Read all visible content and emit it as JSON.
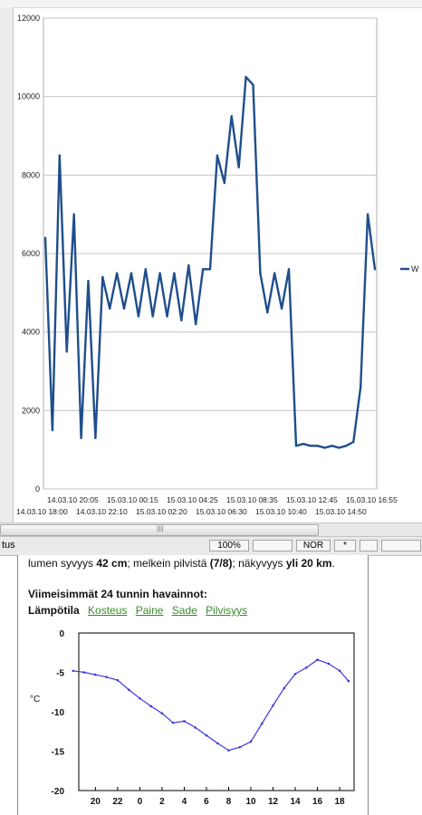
{
  "top_chart": {
    "type": "line",
    "ylim": [
      0,
      12000
    ],
    "y_ticks": [
      0,
      2000,
      4000,
      6000,
      8000,
      10000,
      12000
    ],
    "x_labels_row1": [
      "14.03.10 20:05",
      "15.03.10 00:15",
      "15.03.10 04:25",
      "15.03.10 08:35",
      "15.03.10 12:45",
      "15.03.10 16:55"
    ],
    "x_labels_row2": [
      "14.03.10 18:00",
      "14.03.10 22:10",
      "15.03.10 02:20",
      "15.03.10 06:30",
      "15.03.10 10:40",
      "15.03.10 14:50"
    ],
    "legend_label": "W",
    "series_color": "#1f4e8c",
    "x": [
      "14.03.10 18:00",
      "14.03.10 18:30",
      "14.03.10 19:00",
      "14.03.10 19:30",
      "14.03.10 20:00",
      "14.03.10 20:30",
      "14.03.10 21:00",
      "14.03.10 21:30",
      "14.03.10 22:00",
      "14.03.10 22:30",
      "14.03.10 23:00",
      "14.03.10 23:30",
      "15.03.10 00:00",
      "15.03.10 00:30",
      "15.03.10 01:00",
      "15.03.10 01:30",
      "15.03.10 02:00",
      "15.03.10 02:30",
      "15.03.10 03:00",
      "15.03.10 03:30",
      "15.03.10 04:00",
      "15.03.10 04:30",
      "15.03.10 05:00",
      "15.03.10 05:30",
      "15.03.10 06:00",
      "15.03.10 06:30",
      "15.03.10 07:00",
      "15.03.10 07:30",
      "15.03.10 08:00",
      "15.03.10 08:30",
      "15.03.10 09:00",
      "15.03.10 09:30",
      "15.03.10 10:00",
      "15.03.10 10:30",
      "15.03.10 11:00",
      "15.03.10 11:30",
      "15.03.10 12:00",
      "15.03.10 12:30",
      "15.03.10 13:00",
      "15.03.10 13:30",
      "15.03.10 14:00",
      "15.03.10 14:30",
      "15.03.10 15:00",
      "15.03.10 15:30",
      "15.03.10 16:00",
      "15.03.10 16:30",
      "15.03.10 16:55"
    ],
    "values": [
      6400,
      1500,
      8500,
      3500,
      7000,
      1300,
      5300,
      1300,
      5400,
      4600,
      5500,
      4600,
      5500,
      4400,
      5600,
      4400,
      5500,
      4400,
      5500,
      4300,
      5700,
      4200,
      5600,
      5600,
      8500,
      7800,
      9500,
      8200,
      10500,
      10300,
      5500,
      4500,
      5500,
      4600,
      5600,
      1100,
      1150,
      1100,
      1100,
      1050,
      1100,
      1050,
      1100,
      1200,
      2600,
      7000,
      5600
    ]
  },
  "scrollbar": {
    "grip": "III"
  },
  "statusbar": {
    "left_text": "tus",
    "zoom": "100%",
    "mode": "NOR",
    "star": "*"
  },
  "webpage": {
    "line1_pre": "lumen syvyys ",
    "line1_snow": "42 cm",
    "line1_mid1": "; melkein pilvistä ",
    "line1_cloud": "(7/8)",
    "line1_mid2": "; näkyvyys ",
    "line1_vis": "yli 20 km",
    "line1_end": ".",
    "heading": "Viimeisimmät 24 tunnin havainnot:",
    "tab_active": "Lämpötila",
    "tab_links": [
      "Kosteus",
      "Paine",
      "Sade",
      "Pilvisyys"
    ]
  },
  "temp_chart": {
    "type": "line",
    "ylim": [
      -20,
      0
    ],
    "y_ticks": [
      0,
      -5,
      -10,
      -15,
      -20
    ],
    "ylabel": "°C",
    "x_ticks": [
      "20",
      "22",
      "0",
      "2",
      "4",
      "6",
      "8",
      "10",
      "12",
      "14",
      "16",
      "18"
    ],
    "series_color": "#3a3adc",
    "x": [
      18,
      19,
      20,
      21,
      22,
      23,
      24,
      25,
      26,
      27,
      28,
      29,
      30,
      31,
      32,
      33,
      34,
      35,
      36,
      37,
      38,
      39,
      40,
      41,
      42,
      42.8
    ],
    "values": [
      -4.8,
      -5.0,
      -5.3,
      -5.6,
      -6.0,
      -7.2,
      -8.3,
      -9.3,
      -10.2,
      -11.4,
      -11.2,
      -12.0,
      -13.0,
      -14.0,
      -14.9,
      -14.5,
      -13.8,
      -11.5,
      -9.2,
      -7.0,
      -5.2,
      -4.4,
      -3.4,
      -3.9,
      -4.8,
      -6.1
    ]
  }
}
